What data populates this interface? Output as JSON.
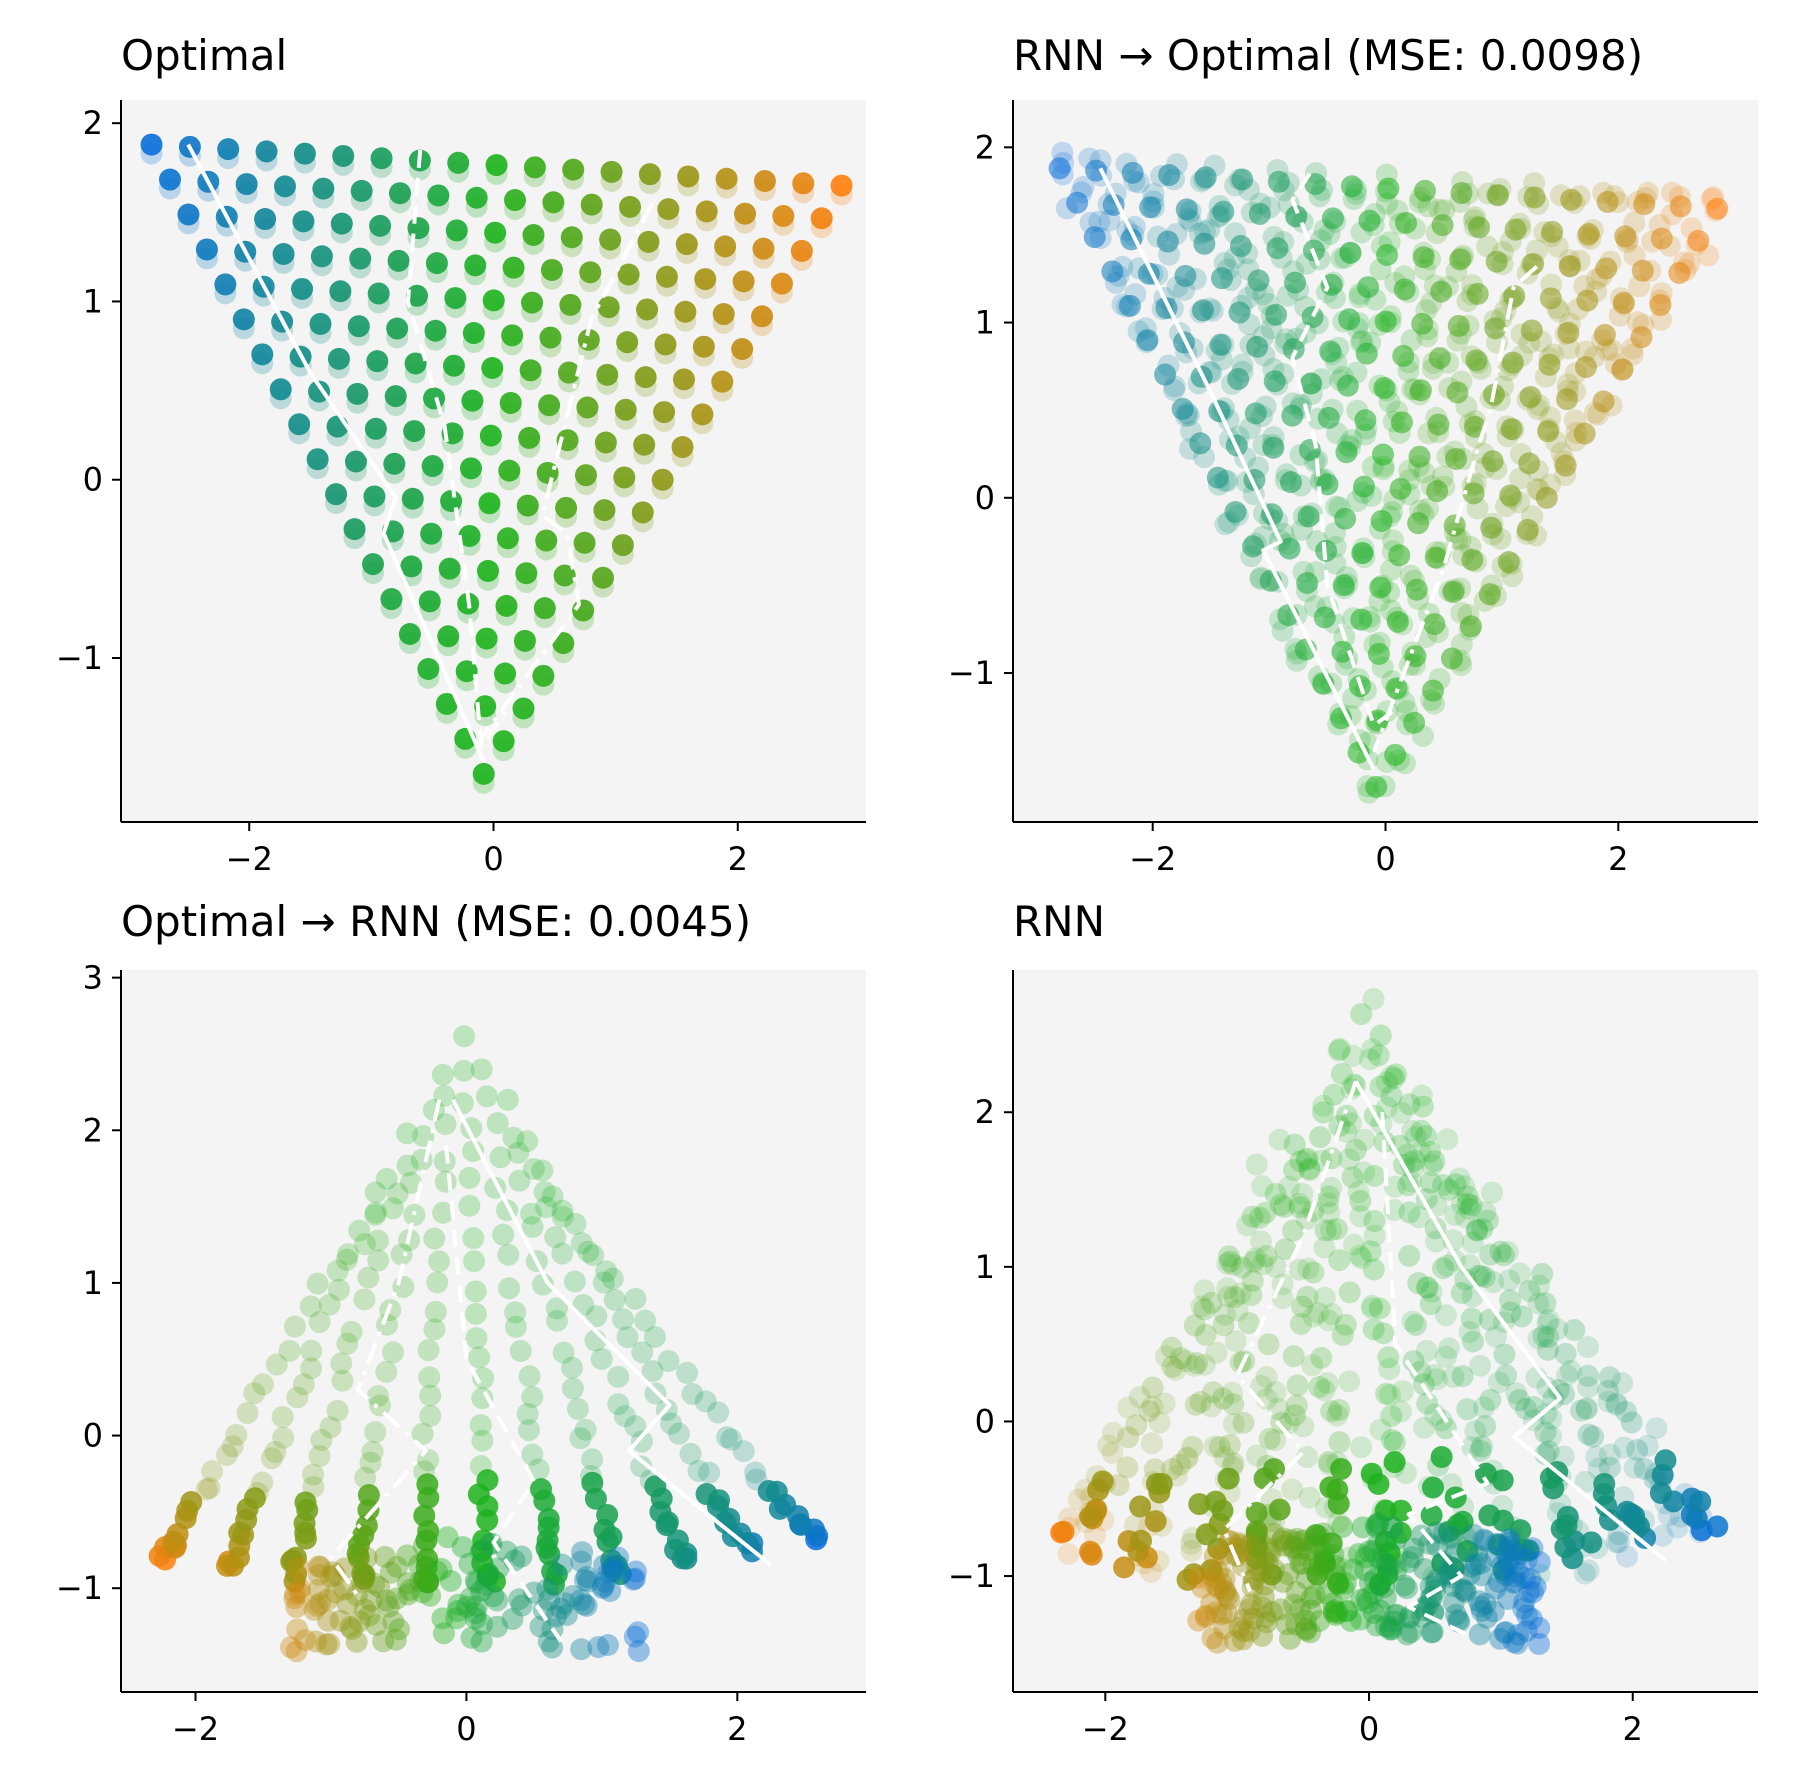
{
  "figure_title": "",
  "chart_data": [
    {
      "type": "scatter",
      "title": "Optimal",
      "xlabel": "",
      "ylabel": "",
      "xlim": [
        -3.05,
        3.05
      ],
      "ylim": [
        -1.92,
        2.13
      ],
      "xticks": [
        -2,
        0,
        2
      ],
      "yticks": [
        -1,
        0,
        1,
        2
      ],
      "xtick_labels": [
        "−2",
        "0",
        "2"
      ],
      "ytick_labels": [
        "−1",
        "0",
        "1",
        "2"
      ],
      "point_cloud": "inverted-triangle",
      "color_gradient": [
        "#0a6fdc",
        "#1db21d",
        "#ff7f0e"
      ],
      "trajectories": [
        {
          "style": "solid",
          "points": [
            [
              -2.5,
              1.88
            ],
            [
              -1.5,
              0.6
            ],
            [
              -0.8,
              -0.1
            ],
            [
              -0.9,
              -0.3
            ],
            [
              -0.08,
              -1.58
            ]
          ]
        },
        {
          "style": "dashed",
          "points": [
            [
              -0.6,
              1.85
            ],
            [
              -0.7,
              1.0
            ],
            [
              -0.4,
              0.3
            ],
            [
              -0.2,
              -0.7
            ],
            [
              -0.1,
              -1.5
            ],
            [
              0.1,
              -1.3
            ]
          ]
        },
        {
          "style": "dashdot",
          "points": [
            [
              1.3,
              1.55
            ],
            [
              0.8,
              0.9
            ],
            [
              0.4,
              -0.2
            ],
            [
              0.6,
              -0.3
            ],
            [
              0.7,
              -0.7
            ],
            [
              -0.1,
              -1.45
            ]
          ]
        }
      ]
    },
    {
      "type": "scatter",
      "title": "RNN → Optimal (MSE: 0.0098)",
      "xlabel": "",
      "ylabel": "",
      "xlim": [
        -3.2,
        3.2
      ],
      "ylim": [
        -1.85,
        2.27
      ],
      "xticks": [
        -2,
        0,
        2
      ],
      "yticks": [
        -1,
        0,
        1,
        2
      ],
      "xtick_labels": [
        "−2",
        "0",
        "2"
      ],
      "ytick_labels": [
        "−1",
        "0",
        "1",
        "2"
      ],
      "point_cloud": "inverted-triangle-noisy",
      "color_gradient": [
        "#0a6fdc",
        "#1db21d",
        "#ff7f0e"
      ],
      "trajectories": [
        {
          "style": "solid",
          "points": [
            [
              -2.45,
              1.88
            ],
            [
              -1.5,
              0.6
            ],
            [
              -0.9,
              -0.25
            ],
            [
              -1.05,
              -0.3
            ],
            [
              -0.1,
              -1.55
            ]
          ]
        },
        {
          "style": "dashed",
          "points": [
            [
              -0.65,
              1.85
            ],
            [
              -0.8,
              1.7
            ],
            [
              -0.5,
              1.2
            ],
            [
              -0.8,
              0.8
            ],
            [
              -0.6,
              0.3
            ],
            [
              -0.5,
              -0.5
            ],
            [
              -0.1,
              -1.3
            ],
            [
              0.1,
              -1.2
            ]
          ]
        },
        {
          "style": "dashdot",
          "points": [
            [
              1.3,
              1.32
            ],
            [
              1.1,
              1.2
            ],
            [
              0.9,
              0.5
            ],
            [
              0.8,
              0.3
            ],
            [
              0.5,
              -0.4
            ],
            [
              -0.1,
              -1.45
            ]
          ]
        }
      ]
    },
    {
      "type": "scatter",
      "title": "Optimal → RNN (MSE: 0.0045)",
      "xlabel": "",
      "ylabel": "",
      "xlim": [
        -2.55,
        2.95
      ],
      "ylim": [
        -1.68,
        3.05
      ],
      "xticks": [
        -2,
        0,
        2
      ],
      "yticks": [
        -1,
        0,
        1,
        2,
        3
      ],
      "xtick_labels": [
        "−2",
        "0",
        "2"
      ],
      "ytick_labels": [
        "−1",
        "0",
        "1",
        "2",
        "3"
      ],
      "point_cloud": "fan",
      "color_gradient": [
        "#0a6fdc",
        "#1db21d",
        "#ff7f0e"
      ],
      "trajectories": [
        {
          "style": "solid",
          "points": [
            [
              -0.1,
              2.2
            ],
            [
              0.6,
              1.0
            ],
            [
              1.5,
              0.2
            ],
            [
              1.2,
              -0.1
            ],
            [
              2.25,
              -0.85
            ]
          ]
        },
        {
          "style": "dashed",
          "points": [
            [
              -0.15,
              1.9
            ],
            [
              0.0,
              0.5
            ],
            [
              0.5,
              -0.3
            ],
            [
              0.2,
              -0.7
            ],
            [
              0.7,
              -1.35
            ]
          ]
        },
        {
          "style": "dashdot",
          "points": [
            [
              -0.2,
              2.2
            ],
            [
              -0.5,
              1.0
            ],
            [
              -0.8,
              0.3
            ],
            [
              -0.3,
              -0.1
            ],
            [
              -1.0,
              -0.8
            ],
            [
              -0.8,
              -1.05
            ]
          ]
        }
      ]
    },
    {
      "type": "scatter",
      "title": "RNN",
      "xlabel": "",
      "ylabel": "",
      "xlim": [
        -2.7,
        2.95
      ],
      "ylim": [
        -1.75,
        2.92
      ],
      "xticks": [
        -2,
        0,
        2
      ],
      "yticks": [
        -1,
        0,
        1,
        2
      ],
      "xtick_labels": [
        "−2",
        "0",
        "2"
      ],
      "ytick_labels": [
        "−1",
        "0",
        "1",
        "2"
      ],
      "point_cloud": "fan-noisy",
      "color_gradient": [
        "#0a6fdc",
        "#1db21d",
        "#ff7f0e"
      ],
      "trajectories": [
        {
          "style": "solid",
          "points": [
            [
              -0.1,
              2.2
            ],
            [
              0.7,
              1.0
            ],
            [
              1.45,
              0.15
            ],
            [
              1.1,
              -0.1
            ],
            [
              2.25,
              -0.9
            ]
          ]
        },
        {
          "style": "dashed",
          "points": [
            [
              0.1,
              2.0
            ],
            [
              0.2,
              0.5
            ],
            [
              0.9,
              -0.4
            ],
            [
              0.3,
              -0.6
            ],
            [
              0.7,
              -1.0
            ],
            [
              0.3,
              -1.2
            ],
            [
              0.8,
              -1.4
            ]
          ]
        },
        {
          "style": "dashdot",
          "points": [
            [
              -0.1,
              2.2
            ],
            [
              -0.5,
              1.2
            ],
            [
              -1.0,
              0.3
            ],
            [
              -0.5,
              -0.2
            ],
            [
              -1.1,
              -0.7
            ],
            [
              -0.9,
              -1.1
            ]
          ]
        }
      ]
    }
  ]
}
